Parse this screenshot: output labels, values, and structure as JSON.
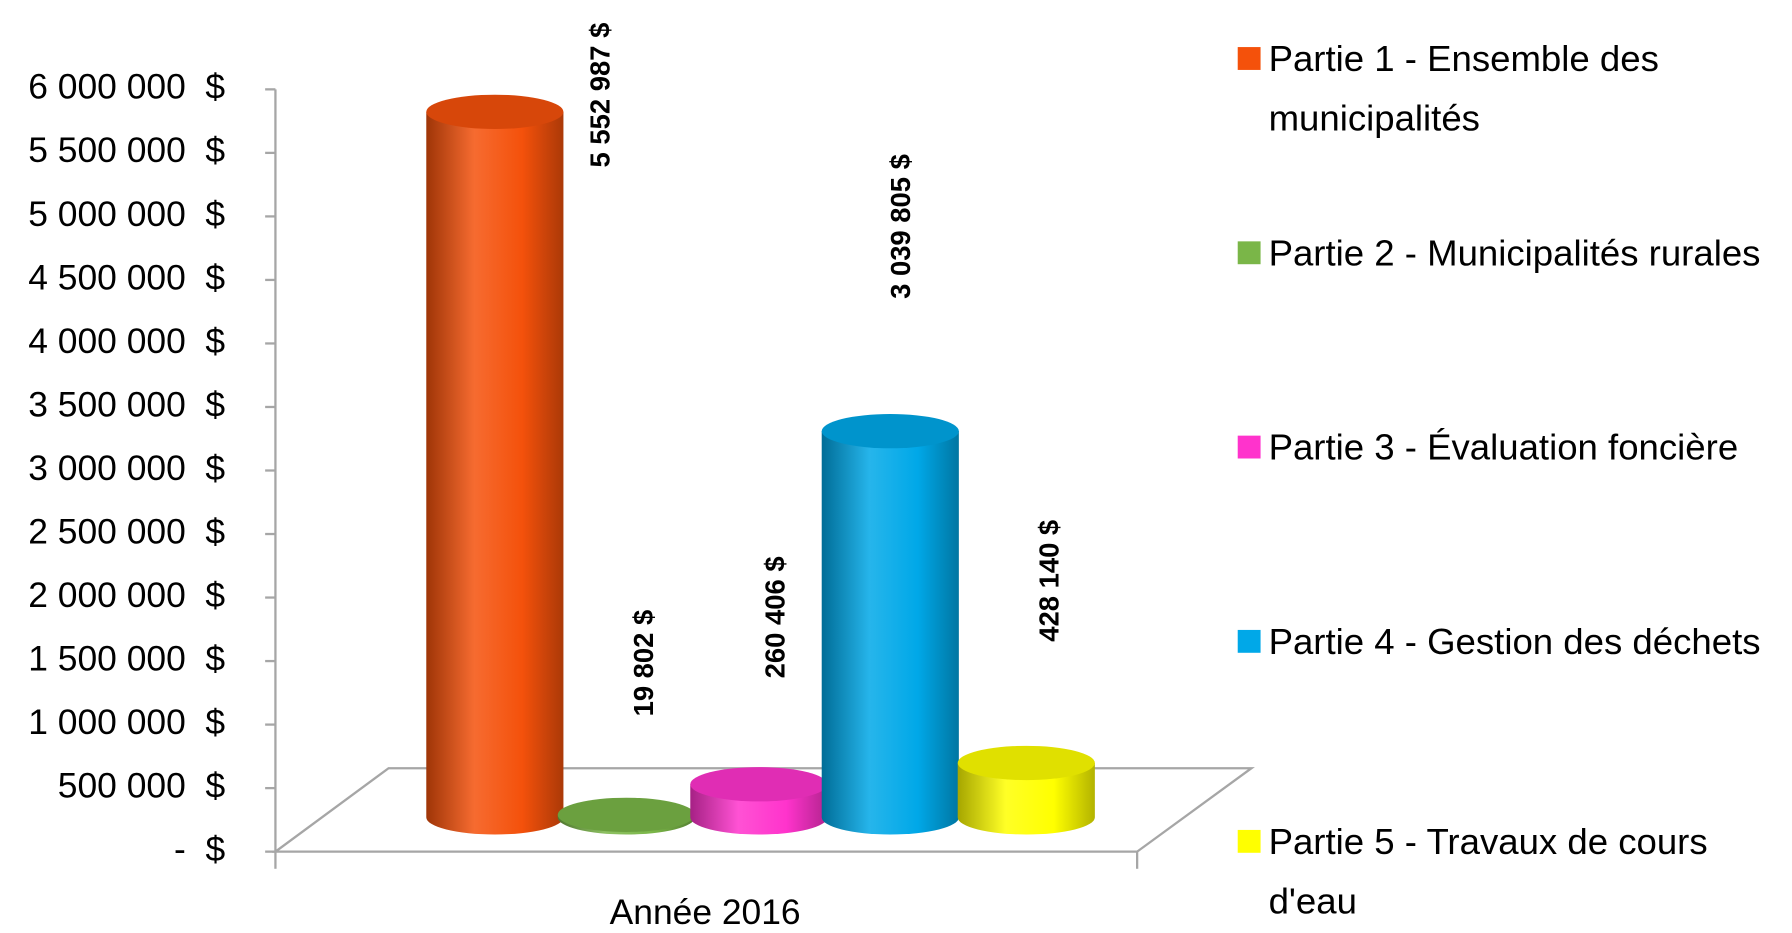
{
  "chart_data": {
    "type": "bar3d",
    "categories": [
      "Année 2016"
    ],
    "series": [
      {
        "name": "Partie 1 - Ensemble des municipalités",
        "color": "#f4510b",
        "values": [
          5552987
        ],
        "value_labels": [
          "5 552 987 $"
        ]
      },
      {
        "name": "Partie 2 - Municipalités rurales",
        "color": "#7ab648",
        "values": [
          19802
        ],
        "value_labels": [
          "19 802 $"
        ]
      },
      {
        "name": "Partie 3 - Évaluation foncière",
        "color": "#ff33cc",
        "values": [
          260406
        ],
        "value_labels": [
          "260 406 $"
        ]
      },
      {
        "name": "Partie 4 - Gestion des déchets",
        "color": "#00a8e8",
        "values": [
          3039805
        ],
        "value_labels": [
          "3 039 805 $"
        ]
      },
      {
        "name": "Partie 5 - Travaux de cours d'eau",
        "color": "#ffff00",
        "values": [
          428140
        ],
        "value_labels": [
          "428 140 $"
        ]
      }
    ],
    "ylim": [
      0,
      6000000
    ],
    "yticks": [
      {
        "value": 0,
        "label": "-  $"
      },
      {
        "value": 500000,
        "label": "500 000  $"
      },
      {
        "value": 1000000,
        "label": "1 000 000  $"
      },
      {
        "value": 1500000,
        "label": "1 500 000  $"
      },
      {
        "value": 2000000,
        "label": "2 000 000  $"
      },
      {
        "value": 2500000,
        "label": "2 500 000  $"
      },
      {
        "value": 3000000,
        "label": "3 000 000  $"
      },
      {
        "value": 3500000,
        "label": "3 500 000  $"
      },
      {
        "value": 4000000,
        "label": "4 000 000  $"
      },
      {
        "value": 4500000,
        "label": "4 500 000  $"
      },
      {
        "value": 5000000,
        "label": "5 000 000  $"
      },
      {
        "value": 5500000,
        "label": "5 500 000  $"
      },
      {
        "value": 6000000,
        "label": "6 000 000  $"
      }
    ],
    "legend": "right"
  }
}
